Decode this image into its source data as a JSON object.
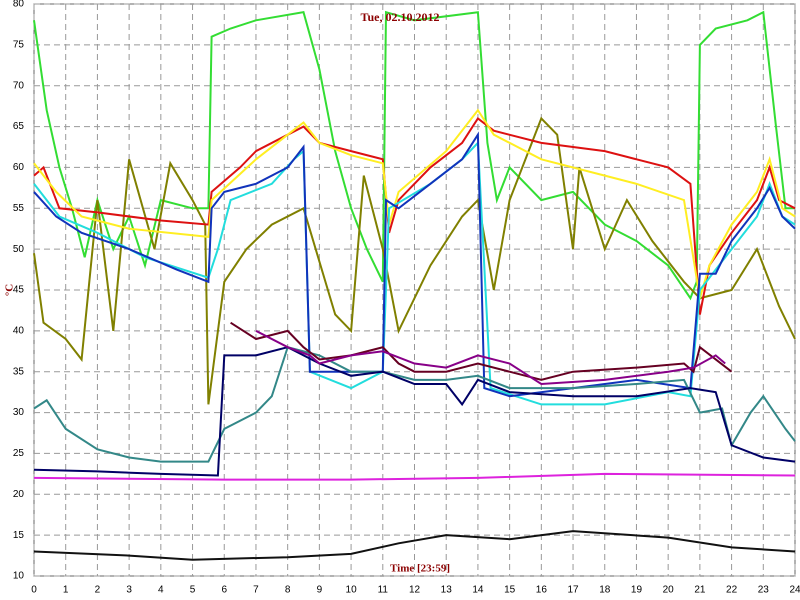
{
  "chart_data": {
    "type": "line",
    "title": "Tue, 02.10.2012",
    "x_label": "Time [23:59]",
    "y_label": "°C",
    "xlim": [
      0,
      24
    ],
    "ylim": [
      10,
      80
    ],
    "xticks": [
      0,
      1,
      2,
      3,
      4,
      5,
      6,
      7,
      8,
      9,
      10,
      11,
      12,
      13,
      14,
      15,
      16,
      17,
      18,
      19,
      20,
      21,
      22,
      23,
      24
    ],
    "yticks": [
      10,
      15,
      20,
      25,
      30,
      35,
      40,
      45,
      50,
      55,
      60,
      65,
      70,
      75,
      80
    ],
    "grid": true,
    "series": [
      {
        "color": "#33dd33",
        "x": [
          0,
          0.4,
          0.8,
          1.2,
          1.6,
          2,
          2.5,
          3,
          3.5,
          4,
          5,
          5.5,
          5.6,
          6.2,
          7,
          8.5,
          9,
          9.5,
          10,
          10.5,
          11,
          11.1,
          12,
          14,
          14.3,
          14.6,
          15,
          16,
          17,
          18,
          19,
          20,
          20.7,
          20.9,
          21,
          21.5,
          22.5,
          23,
          23.4,
          23.7,
          24
        ],
        "values": [
          78,
          67,
          60,
          55,
          49,
          56,
          50,
          54,
          48,
          56,
          55,
          55,
          76,
          77,
          78,
          79,
          72,
          62,
          55,
          50,
          46,
          79,
          78,
          79,
          63,
          56,
          60,
          56,
          57,
          53,
          51,
          48,
          44,
          46,
          75,
          77,
          78,
          79,
          65,
          55,
          55
        ]
      },
      {
        "color": "#808000",
        "x": [
          0,
          0.3,
          1,
          1.5,
          2,
          2.5,
          3,
          3.8,
          4.3,
          5,
          5.4,
          5.5,
          6,
          6.7,
          7.5,
          8.5,
          9.5,
          10,
          10.4,
          11,
          11.5,
          12.5,
          13.5,
          14,
          14.5,
          15,
          16,
          16.5,
          17,
          17.2,
          18,
          18.7,
          19.5,
          20.5,
          21,
          21.5,
          22,
          22.8,
          23.5,
          24
        ],
        "values": [
          49.5,
          41,
          39,
          36.5,
          56,
          40,
          61,
          50,
          60.5,
          56,
          53,
          31,
          46,
          50,
          53,
          55,
          42,
          40,
          59,
          50,
          40,
          48,
          54,
          56,
          45,
          56,
          66,
          64,
          50,
          60,
          50,
          56,
          51,
          46,
          44,
          44.5,
          45,
          50,
          43,
          39
        ]
      },
      {
        "color": "#dd1111",
        "x": [
          0,
          0.3,
          0.8,
          2,
          4,
          5.5,
          5.6,
          6.5,
          7,
          8,
          8.5,
          9,
          10,
          11,
          11.2,
          11.5,
          12.5,
          13.5,
          14,
          14.5,
          16,
          18,
          19,
          20,
          20.7,
          21,
          21.3,
          22,
          22.8,
          23.2,
          23.5,
          24
        ],
        "values": [
          59,
          60,
          55,
          54.5,
          53.5,
          53,
          57,
          60,
          62,
          64,
          65,
          63,
          62,
          61,
          52,
          56,
          60,
          63,
          66,
          64.5,
          63,
          62,
          61,
          60,
          58,
          42,
          48,
          52,
          56,
          60,
          56,
          55
        ]
      },
      {
        "color": "#ffee22",
        "x": [
          0,
          0.7,
          1.5,
          3,
          5.5,
          5.6,
          7,
          8,
          8.5,
          9,
          10,
          11,
          11.2,
          11.5,
          13,
          14,
          14.5,
          16,
          18,
          19,
          20.5,
          21,
          21.3,
          22,
          22.8,
          23.2,
          23.6,
          24
        ],
        "values": [
          60.5,
          57,
          54,
          52.5,
          51.5,
          56,
          61,
          64,
          65.5,
          63,
          61.5,
          60.5,
          53,
          57,
          62,
          67,
          64,
          61,
          59,
          58,
          56,
          44,
          48,
          53,
          57,
          61,
          55,
          54
        ]
      },
      {
        "color": "#22dddd",
        "x": [
          0,
          0.8,
          2,
          3.5,
          5.5,
          5.8,
          6.2,
          7.5,
          8.2,
          8.5,
          8.7,
          10,
          11,
          11.2,
          12.5,
          13.5,
          14,
          14.4,
          16,
          18,
          20,
          20.7,
          21,
          22,
          22.8,
          23.2,
          23.6,
          24
        ],
        "values": [
          58,
          54,
          52,
          49,
          46.5,
          50,
          56,
          58,
          61,
          62,
          35,
          33,
          35,
          55,
          58,
          61,
          63,
          33,
          31,
          31,
          32.5,
          32,
          45,
          50,
          54,
          58,
          54,
          53
        ]
      },
      {
        "color": "#1133bb",
        "x": [
          0,
          0.7,
          1.5,
          3,
          4.5,
          5.5,
          5.6,
          6,
          7,
          8,
          8.5,
          8.7,
          11,
          11.1,
          11.5,
          12.5,
          13.5,
          14,
          14.2,
          15,
          17,
          19,
          20.7,
          21,
          21.5,
          22,
          22.8,
          23.2,
          23.6,
          24
        ],
        "values": [
          57,
          54,
          52,
          50,
          47.5,
          46,
          55,
          57,
          58,
          60,
          62.5,
          35,
          35,
          56,
          55,
          58,
          61,
          64,
          33,
          32,
          33,
          34,
          33,
          47,
          47,
          51,
          55,
          57.5,
          54,
          52.5
        ]
      },
      {
        "color": "#338888",
        "x": [
          0,
          0.4,
          1,
          2,
          3,
          4,
          5.5,
          6,
          7,
          7.5,
          8,
          9,
          10,
          11,
          12,
          13,
          14,
          15,
          17,
          19,
          20.5,
          21,
          21.7,
          22,
          22.6,
          23,
          23.7,
          24
        ],
        "values": [
          30.5,
          31.5,
          28,
          25.5,
          24.5,
          24,
          24,
          28,
          30,
          32,
          38,
          37,
          35,
          35,
          34,
          34,
          34.5,
          33,
          33,
          33.5,
          34,
          30,
          30.5,
          26,
          30,
          32,
          28,
          26.5
        ]
      },
      {
        "color": "#000066",
        "x": [
          0,
          2,
          4,
          5.8,
          6,
          7,
          8,
          9,
          10,
          11,
          12,
          13,
          13.5,
          14,
          15,
          17,
          19,
          20.7,
          21.5,
          22,
          23,
          24
        ],
        "values": [
          23,
          22.8,
          22.5,
          22.3,
          37,
          37,
          38,
          36,
          34.5,
          35,
          33.5,
          33.5,
          31,
          34,
          32.5,
          32,
          32,
          33,
          32.5,
          26,
          24.5,
          24
        ]
      },
      {
        "color": "#660022",
        "x": [
          6.2,
          7,
          8,
          8.5,
          9,
          10,
          11,
          11.5,
          12,
          13,
          14,
          15,
          16,
          17,
          19,
          20.5,
          20.8,
          21,
          22
        ],
        "values": [
          41,
          39,
          40,
          38,
          36.5,
          37,
          38,
          36,
          35,
          35,
          36,
          35,
          34,
          35,
          35.5,
          36,
          35,
          38,
          35
        ]
      },
      {
        "color": "#880088",
        "x": [
          7,
          8,
          8.7,
          9,
          10,
          11,
          12,
          13,
          14,
          15,
          16,
          18,
          20,
          20.8,
          21.5,
          21.8
        ],
        "values": [
          40,
          38,
          37,
          36,
          37,
          37.5,
          36,
          35.5,
          37,
          36,
          33.5,
          34,
          35,
          35.5,
          37,
          36
        ]
      },
      {
        "color": "#dd22dd",
        "x": [
          0,
          6,
          10,
          14,
          18,
          24
        ],
        "values": [
          22,
          21.8,
          21.8,
          22,
          22.5,
          22.3
        ]
      },
      {
        "color": "#111111",
        "x": [
          0,
          3,
          5,
          8,
          10,
          11.5,
          13,
          15,
          17,
          20,
          22,
          24
        ],
        "values": [
          13,
          12.5,
          12,
          12.3,
          12.7,
          14,
          15,
          14.5,
          15.5,
          14.7,
          13.5,
          13
        ]
      }
    ]
  }
}
